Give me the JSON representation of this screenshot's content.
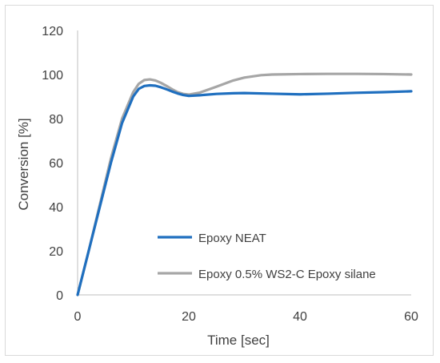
{
  "chart_data": {
    "type": "line",
    "title": "",
    "xlabel": "Time [sec]",
    "ylabel": "Conversion [%]",
    "xlim": [
      0,
      60
    ],
    "ylim": [
      0,
      120
    ],
    "x_ticks": [
      0,
      20,
      40,
      60
    ],
    "y_ticks": [
      0,
      20,
      40,
      60,
      80,
      100,
      120
    ],
    "grid": false,
    "legend_position": "inside-bottom-right",
    "series": [
      {
        "name": "Epoxy NEAT",
        "color": "#1f6fbf",
        "x": [
          0,
          2,
          4,
          6,
          8,
          10,
          11,
          12,
          13,
          14,
          15,
          16,
          17,
          18,
          19,
          20,
          22,
          25,
          28,
          30,
          35,
          40,
          45,
          50,
          55,
          60
        ],
        "y": [
          0,
          20,
          40,
          60,
          78,
          90,
          93.5,
          94.8,
          95.1,
          94.9,
          94.2,
          93.3,
          92.3,
          91.4,
          90.7,
          90.3,
          90.6,
          91.2,
          91.5,
          91.6,
          91.3,
          91,
          91.3,
          91.7,
          92,
          92.4
        ]
      },
      {
        "name": "Epoxy 0.5% WS2-C Epoxy silane",
        "color": "#a6a6a6",
        "x": [
          0,
          2,
          4,
          6,
          8,
          10,
          11,
          12,
          13,
          14,
          15,
          16,
          17,
          18,
          19,
          20,
          22,
          25,
          28,
          30,
          33,
          35,
          40,
          45,
          50,
          55,
          60
        ],
        "y": [
          0,
          20,
          41,
          62,
          80,
          92,
          95.8,
          97.5,
          97.8,
          97.3,
          96.2,
          94.8,
          93.3,
          92,
          91.2,
          90.9,
          91.8,
          94.5,
          97.3,
          98.6,
          99.7,
          100,
          100.2,
          100.3,
          100.3,
          100.2,
          100
        ]
      }
    ]
  }
}
